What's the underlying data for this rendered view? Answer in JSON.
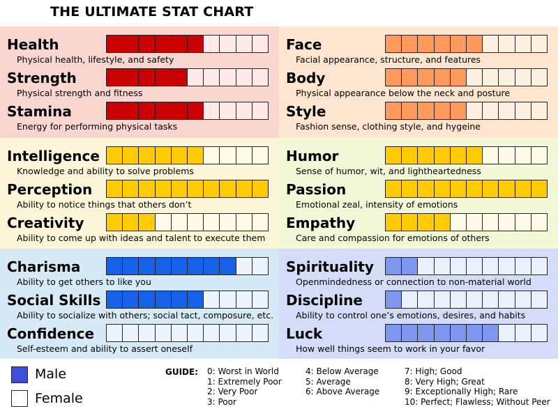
{
  "title": "THE ULTIMATE STAT CHART",
  "chart_data": {
    "type": "table",
    "max": 10,
    "groups": [
      {
        "id": "physical",
        "bg": "#f9d6d0",
        "fill": "#cc0000",
        "empty": "#fde9e6",
        "stats": [
          {
            "name": "Health",
            "description": "Physical health, lifestyle, and safety",
            "value": 6
          },
          {
            "name": "Strength",
            "description": "Physical strength and fitness",
            "value": 5
          },
          {
            "name": "Stamina",
            "description": "Energy for performing physical tasks",
            "value": 6
          }
        ]
      },
      {
        "id": "appearance",
        "bg": "#fde5cf",
        "fill": "#ff9a5a",
        "empty": "#fff1e2",
        "stats": [
          {
            "name": "Face",
            "description": "Facial appearance, structure, and features",
            "value": 6
          },
          {
            "name": "Body",
            "description": "Physical appearance below the neck and posture",
            "value": 5
          },
          {
            "name": "Style",
            "description": "Fashion sense, clothing style, and hygeine",
            "value": 5
          }
        ]
      },
      {
        "id": "mental",
        "bg": "#fdf6d8",
        "fill": "#ffcc00",
        "empty": "#fffbe6",
        "stats": [
          {
            "name": "Intelligence",
            "description": "Knowledge and ability to solve problems",
            "value": 6
          },
          {
            "name": "Perception",
            "description": "Ability to notice things that others don’t",
            "value": 10
          },
          {
            "name": "Creativity",
            "description": "Ability to come up with ideas and talent to execute them",
            "value": 3
          }
        ]
      },
      {
        "id": "emotional",
        "bg": "#f3f8d8",
        "fill": "#ffcc00",
        "empty": "#fffbe6",
        "stats": [
          {
            "name": "Humor",
            "description": "Sense of humor, wit, and lightheartedness",
            "value": 6
          },
          {
            "name": "Passion",
            "description": "Emotional zeal, intensity of emotions",
            "value": 10
          },
          {
            "name": "Empathy",
            "description": "Care and compassion for emotions of others",
            "value": 4
          }
        ]
      },
      {
        "id": "social",
        "bg": "#d6eaf8",
        "fill": "#1561ea",
        "empty": "#ecf5fd",
        "stats": [
          {
            "name": "Charisma",
            "description": "Ability to get others to like you",
            "value": 8
          },
          {
            "name": "Social Skills",
            "description": "Ability to socialize with others; social tact, composure, etc.",
            "value": 6
          },
          {
            "name": "Confidence",
            "description": "Self-esteem and ability to assert oneself",
            "value": 0
          }
        ]
      },
      {
        "id": "spiritual",
        "bg": "#d4dcf8",
        "fill": "#7e98ef",
        "empty": "#ecf0fd",
        "stats": [
          {
            "name": "Spirituality",
            "description": "Openmindedness or connection to non-material world",
            "value": 2
          },
          {
            "name": "Discipline",
            "description": "Ability to control one’s emotions, desires, and habits",
            "value": 1
          },
          {
            "name": "Luck",
            "description": "How well things seem to work in your favor",
            "value": 7
          }
        ]
      }
    ]
  },
  "legend": {
    "male": {
      "label": "Male",
      "color": "#3d4fd8"
    },
    "female": {
      "label": "Female",
      "color": "#ffffff"
    }
  },
  "guide": {
    "label": "GUIDE:",
    "columns": [
      [
        "0: Worst in World",
        "1: Extremely Poor",
        "2: Very Poor",
        "3: Poor"
      ],
      [
        "4: Below Average",
        "5: Average",
        "6: Above Average"
      ],
      [
        "7: High; Good",
        "8: Very High; Great",
        "9: Exceptionally High; Rare",
        "10: Perfect; Flawless; Without Peer"
      ]
    ]
  }
}
